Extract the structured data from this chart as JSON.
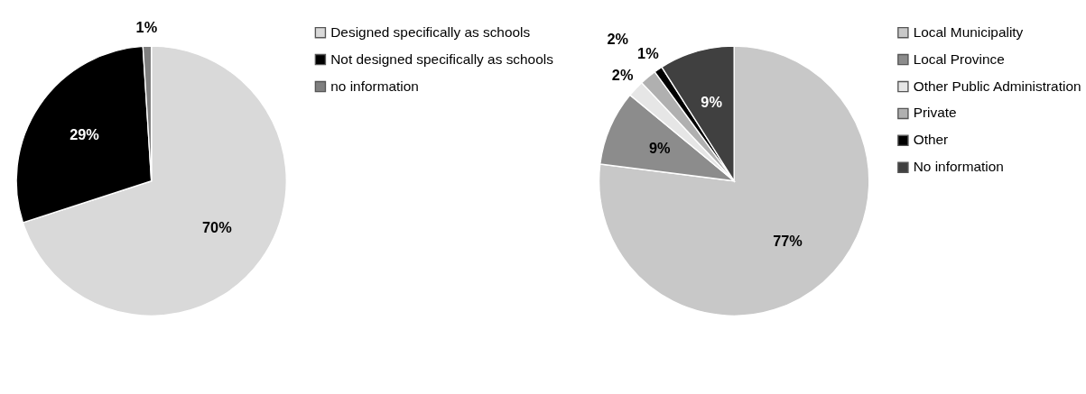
{
  "chart_data": [
    {
      "type": "pie",
      "categories": [
        "Designed specifically as schools",
        "Not designed specifically as schools",
        "no information"
      ],
      "values": [
        70,
        29,
        1
      ],
      "colors": [
        "#d9d9d9",
        "#000000",
        "#7f7f7f"
      ],
      "value_labels": [
        "70%",
        "29%",
        "1%"
      ],
      "legend": "right"
    },
    {
      "type": "pie",
      "categories": [
        "Local Municipality",
        "Local Province",
        "Other Public Administration",
        "Private",
        "Other",
        "No information"
      ],
      "values": [
        77,
        9,
        2,
        2,
        1,
        9
      ],
      "colors": [
        "#c8c8c8",
        "#8c8c8c",
        "#e6e6e6",
        "#b0b0b0",
        "#000000",
        "#404040"
      ],
      "value_labels": [
        "77%",
        "9%",
        "2%",
        "2%",
        "1%",
        "9%"
      ],
      "legend": "right"
    }
  ]
}
